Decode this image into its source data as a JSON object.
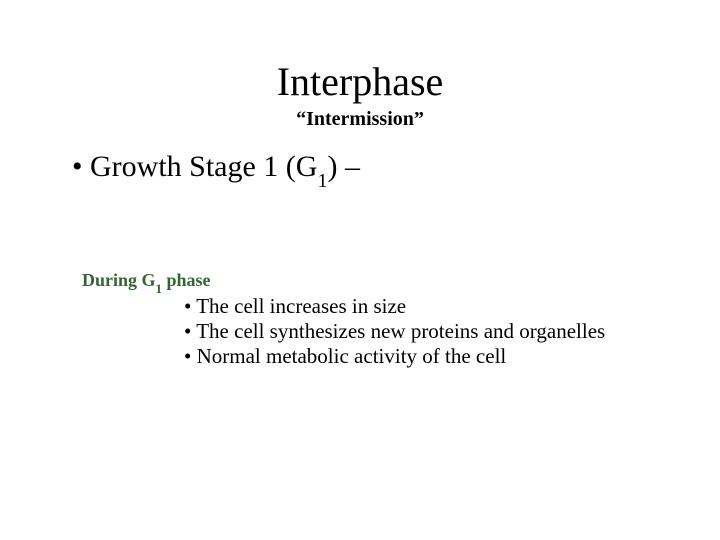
{
  "title": "Interphase",
  "subtitle": "“Intermission”",
  "main_bullet_prefix": "• Growth Stage 1 (G",
  "main_bullet_sub": "1",
  "main_bullet_suffix": ") –",
  "subheading_prefix": "During G",
  "subheading_sub": "1",
  "subheading_suffix": " phase",
  "body_line1": "• The cell increases in size",
  "body_line2": "• The cell synthesizes new proteins and organelles",
  "body_line3": "• Normal metabolic activity of the cell",
  "colors": {
    "background": "#ffffff",
    "text": "#000000",
    "subheading": "#336633"
  },
  "fonts": {
    "title_size": 40,
    "subtitle_size": 20,
    "main_bullet_size": 30,
    "subheading_size": 18,
    "body_size": 21
  }
}
